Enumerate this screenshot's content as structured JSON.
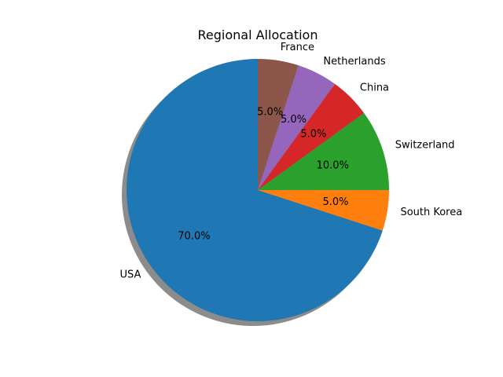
{
  "chart_data": {
    "type": "pie",
    "title": "Regional Allocation",
    "start_angle_deg": 90,
    "direction": "counterclockwise",
    "shadow": true,
    "slices": [
      {
        "label": "USA",
        "value": 70.0,
        "pct_label": "70.0%",
        "color": "#1f77b4"
      },
      {
        "label": "South Korea",
        "value": 5.0,
        "pct_label": "5.0%",
        "color": "#ff7f0e"
      },
      {
        "label": "Switzerland",
        "value": 10.0,
        "pct_label": "10.0%",
        "color": "#2ca02c"
      },
      {
        "label": "China",
        "value": 5.0,
        "pct_label": "5.0%",
        "color": "#d62728"
      },
      {
        "label": "Netherlands",
        "value": 5.0,
        "pct_label": "5.0%",
        "color": "#9467bd"
      },
      {
        "label": "France",
        "value": 5.0,
        "pct_label": "5.0%",
        "color": "#8c564b"
      }
    ]
  }
}
